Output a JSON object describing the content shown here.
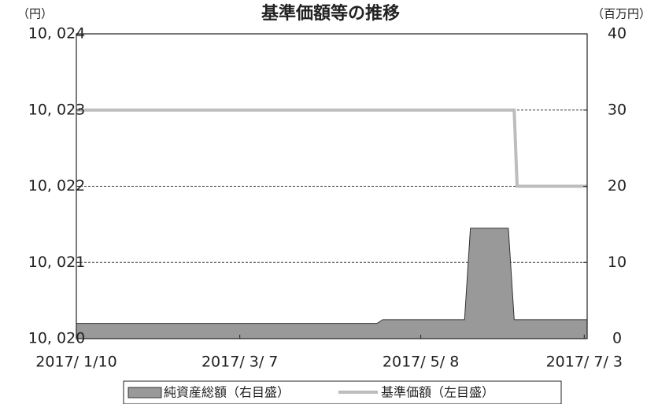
{
  "chart_data": {
    "type": "line_area",
    "title": "基準価額等の推移",
    "y_unit": "（円）",
    "y2_unit": "（百万円）",
    "x": [
      "2017-01-10",
      "2017-04-23",
      "2017-04-25",
      "2017-05-23",
      "2017-05-25",
      "2017-06-07",
      "2017-06-09",
      "2017-06-10",
      "2017-07-04"
    ],
    "xlim": [
      "2017-01-10",
      "2017-07-04"
    ],
    "xticks": [
      {
        "value": "2017-01-10",
        "label": "2017/ 1/10"
      },
      {
        "value": "2017-03-07",
        "label": "2017/ 3/ 7"
      },
      {
        "value": "2017-05-08",
        "label": "2017/ 5/ 8"
      },
      {
        "value": "2017-07-03",
        "label": "2017/ 7/ 3"
      }
    ],
    "ylim": [
      10020,
      10024
    ],
    "yticks": [
      {
        "value": 10020,
        "label": "10, 020"
      },
      {
        "value": 10021,
        "label": "10, 021"
      },
      {
        "value": 10022,
        "label": "10, 022"
      },
      {
        "value": 10023,
        "label": "10, 023"
      },
      {
        "value": 10024,
        "label": "10, 024"
      }
    ],
    "y2lim": [
      0,
      40
    ],
    "y2ticks": [
      0,
      10,
      20,
      30,
      40
    ],
    "grid": true,
    "series": [
      {
        "name": "純資産総額（右目盛）",
        "type": "area",
        "axis": "y2",
        "color": "#999999",
        "values": [
          2,
          2,
          2.5,
          2.5,
          14.5,
          14.5,
          2.5,
          2.5,
          2.5
        ]
      },
      {
        "name": "基準価額（左目盛）",
        "type": "line",
        "axis": "y",
        "color": "#bdbdbd",
        "values": [
          10023,
          10023,
          10023,
          10023,
          10023,
          10023,
          10023,
          10022,
          10022
        ]
      }
    ]
  }
}
